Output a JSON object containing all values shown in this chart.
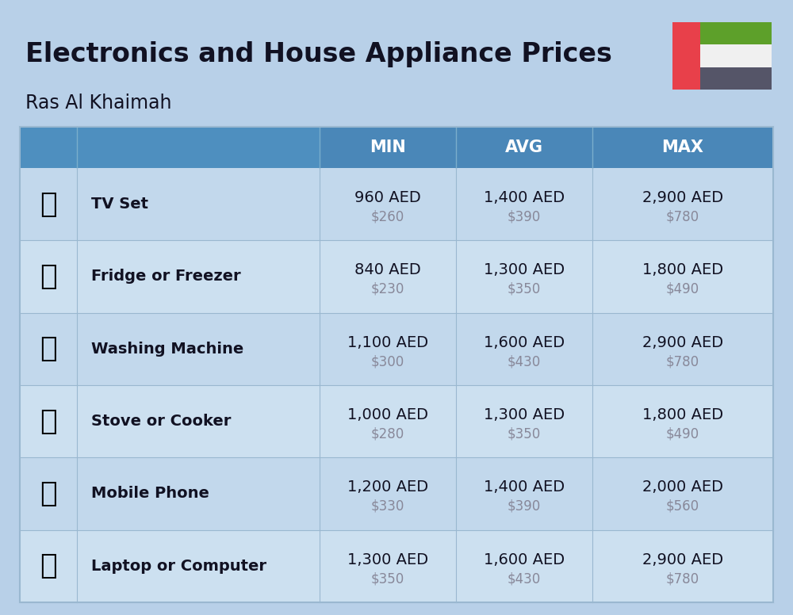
{
  "title": "Electronics and House Appliance Prices",
  "subtitle": "Ras Al Khaimah",
  "bg_color": "#b8d0e8",
  "header_bg": "#4e8fbf",
  "header_text": "#ffffff",
  "row_colors": [
    "#c2d8ec",
    "#cce0f0"
  ],
  "divider_color": "#9ab8d0",
  "text_dark": "#111122",
  "text_usd": "#888899",
  "flag_red": "#e8404a",
  "flag_green": "#5da02a",
  "flag_white": "#f0f0f0",
  "flag_gray": "#555568",
  "items": [
    {
      "name": "TV Set",
      "min_aed": "960 AED",
      "min_usd": "$260",
      "avg_aed": "1,400 AED",
      "avg_usd": "$390",
      "max_aed": "2,900 AED",
      "max_usd": "$780"
    },
    {
      "name": "Fridge or Freezer",
      "min_aed": "840 AED",
      "min_usd": "$230",
      "avg_aed": "1,300 AED",
      "avg_usd": "$350",
      "max_aed": "1,800 AED",
      "max_usd": "$490"
    },
    {
      "name": "Washing Machine",
      "min_aed": "1,100 AED",
      "min_usd": "$300",
      "avg_aed": "1,600 AED",
      "avg_usd": "$430",
      "max_aed": "2,900 AED",
      "max_usd": "$780"
    },
    {
      "name": "Stove or Cooker",
      "min_aed": "1,000 AED",
      "min_usd": "$280",
      "avg_aed": "1,300 AED",
      "avg_usd": "$350",
      "max_aed": "1,800 AED",
      "max_usd": "$490"
    },
    {
      "name": "Mobile Phone",
      "min_aed": "1,200 AED",
      "min_usd": "$330",
      "avg_aed": "1,400 AED",
      "avg_usd": "$390",
      "max_aed": "2,000 AED",
      "max_usd": "$560"
    },
    {
      "name": "Laptop or Computer",
      "min_aed": "1,300 AED",
      "min_usd": "$350",
      "avg_aed": "1,600 AED",
      "avg_usd": "$430",
      "max_aed": "2,900 AED",
      "max_usd": "$780"
    }
  ],
  "icon_chars": [
    "📺",
    "❄",
    "🧹",
    "🔥",
    "📱",
    "💻"
  ]
}
